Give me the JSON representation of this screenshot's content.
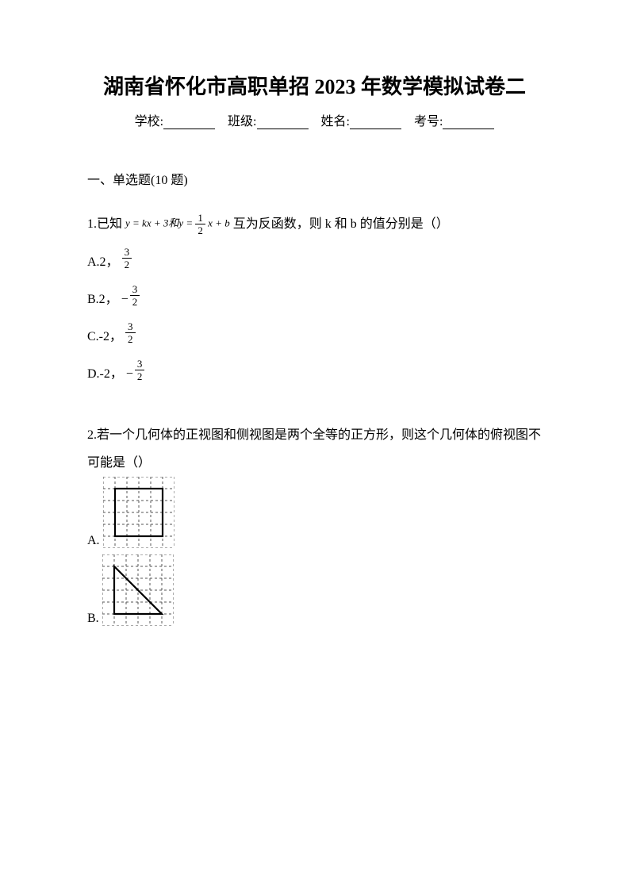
{
  "title": "湖南省怀化市高职单招 2023 年数学模拟试卷二",
  "info": {
    "school_label": "学校:",
    "class_label": "班级:",
    "name_label": "姓名:",
    "examno_label": "考号:"
  },
  "section1": {
    "header": "一、单选题(10 题)"
  },
  "q1": {
    "prefix": "1.已知",
    "formula_text": "y = kx + 3和y = ",
    "formula_frac_num": "1",
    "formula_frac_den": "2",
    "formula_tail": "x + b",
    "suffix": "互为反函数，则 k 和 b 的值分别是（）",
    "optA_label": "A.2，",
    "optA_num": "3",
    "optA_den": "2",
    "optB_label": "B.2，",
    "optB_neg": "−",
    "optB_num": "3",
    "optB_den": "2",
    "optC_label": "C.-2，",
    "optC_num": "3",
    "optC_den": "2",
    "optD_label": "D.-2，",
    "optD_neg": "−",
    "optD_num": "3",
    "optD_den": "2"
  },
  "q2": {
    "text": "2.若一个几何体的正视图和侧视图是两个全等的正方形，则这个几何体的俯视图不可能是（）",
    "optA_label": "A.",
    "optB_label": "B.",
    "grid": {
      "size": 90,
      "cells": 6,
      "dash_color": "#555555",
      "solid_color": "#000000",
      "solid_width": 2.2,
      "dash_width": 1,
      "dash_array": "3,3",
      "background": "#ffffff"
    },
    "optA_shape": "square",
    "optB_shape": "triangle"
  },
  "colors": {
    "text": "#000000",
    "background": "#ffffff"
  },
  "fonts": {
    "body_size": 16,
    "title_size": 26
  }
}
